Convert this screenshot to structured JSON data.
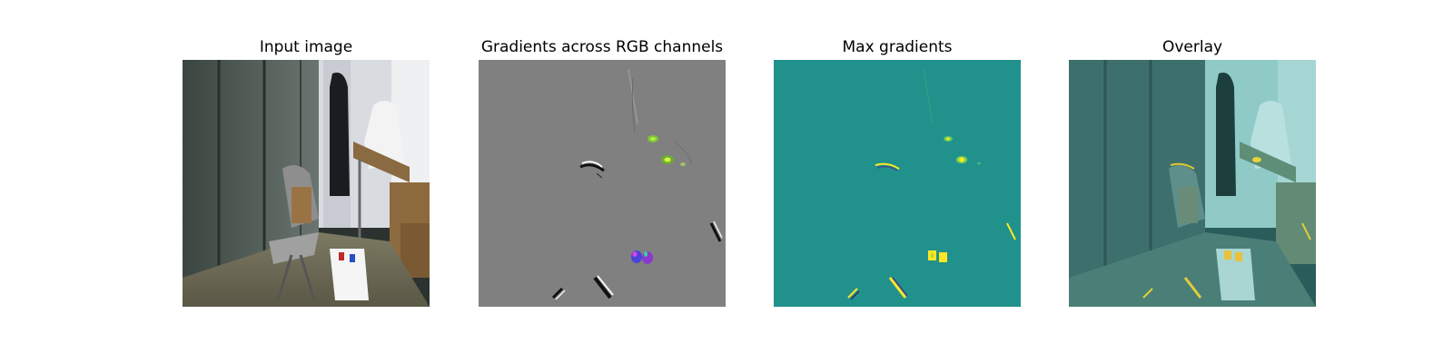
{
  "panels": [
    {
      "title": "Input image"
    },
    {
      "title": "Gradients across RGB channels"
    },
    {
      "title": "Max gradients"
    },
    {
      "title": "Overlay"
    }
  ],
  "colors": {
    "background": "#ffffff",
    "gradient_gray": "#808080",
    "viridis_teal": "#21918c",
    "viridis_yellow": "#fde725",
    "overlay_tint": "#5bbcb8"
  }
}
